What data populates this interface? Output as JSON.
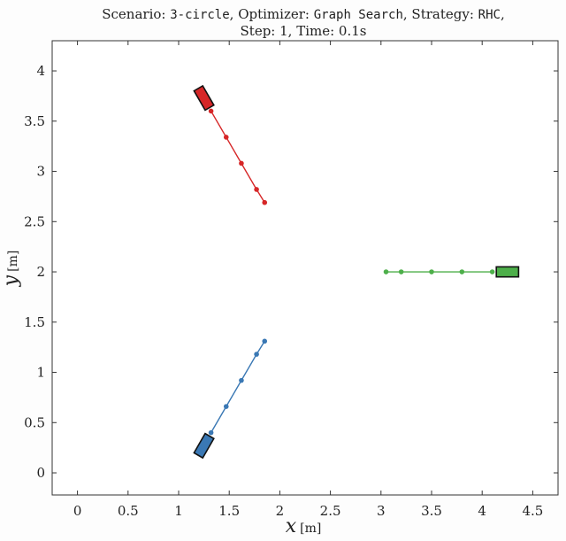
{
  "title": {
    "line1": {
      "scenario_label": "Scenario: ",
      "scenario": "3-circle",
      "optimizer_label": ", Optimizer: ",
      "optimizer": "Graph Search",
      "strategy_label": ", Strategy: ",
      "strategy": "RHC",
      "end": ","
    },
    "line2": "Step: 1, Time: 0.1s"
  },
  "axes": {
    "xlabel_var": "x",
    "xlabel_unit": "[m]",
    "ylabel_var": "y",
    "ylabel_unit": "[m]"
  },
  "chart_data": {
    "type": "line",
    "xlim": [
      -0.25,
      4.75
    ],
    "ylim": [
      -0.22,
      4.3
    ],
    "xticks": [
      0,
      0.5,
      1,
      1.5,
      2,
      2.5,
      3,
      3.5,
      4,
      4.5
    ],
    "xtick_labels": [
      "0",
      "0.5",
      "1",
      "1.5",
      "2",
      "2.5",
      "3",
      "3.5",
      "4",
      "4.5"
    ],
    "yticks": [
      0,
      0.5,
      1,
      1.5,
      2,
      2.5,
      3,
      3.5,
      4
    ],
    "ytick_labels": [
      "0",
      "0.5",
      "1",
      "1.5",
      "2",
      "2.5",
      "3",
      "3.5",
      "4"
    ],
    "grid": false,
    "series": [
      {
        "color": "#d62728",
        "x": [
          1.32,
          1.47,
          1.62,
          1.77,
          1.85
        ],
        "y": [
          3.6,
          3.34,
          3.08,
          2.82,
          2.69
        ],
        "vehicle": {
          "x": 1.25,
          "y": 3.73,
          "heading_deg": 120,
          "length": 0.22,
          "width": 0.1
        }
      },
      {
        "color": "#3a78b4",
        "x": [
          1.32,
          1.47,
          1.62,
          1.77,
          1.85
        ],
        "y": [
          0.4,
          0.66,
          0.92,
          1.18,
          1.31
        ],
        "vehicle": {
          "x": 1.25,
          "y": 0.27,
          "heading_deg": 240,
          "length": 0.22,
          "width": 0.1
        }
      },
      {
        "color": "#4daf4a",
        "x": [
          3.05,
          3.2,
          3.5,
          3.8,
          4.1
        ],
        "y": [
          2.0,
          2.0,
          2.0,
          2.0,
          2.0
        ],
        "vehicle": {
          "x": 4.25,
          "y": 2.0,
          "heading_deg": 0,
          "length": 0.22,
          "width": 0.1
        }
      }
    ]
  }
}
